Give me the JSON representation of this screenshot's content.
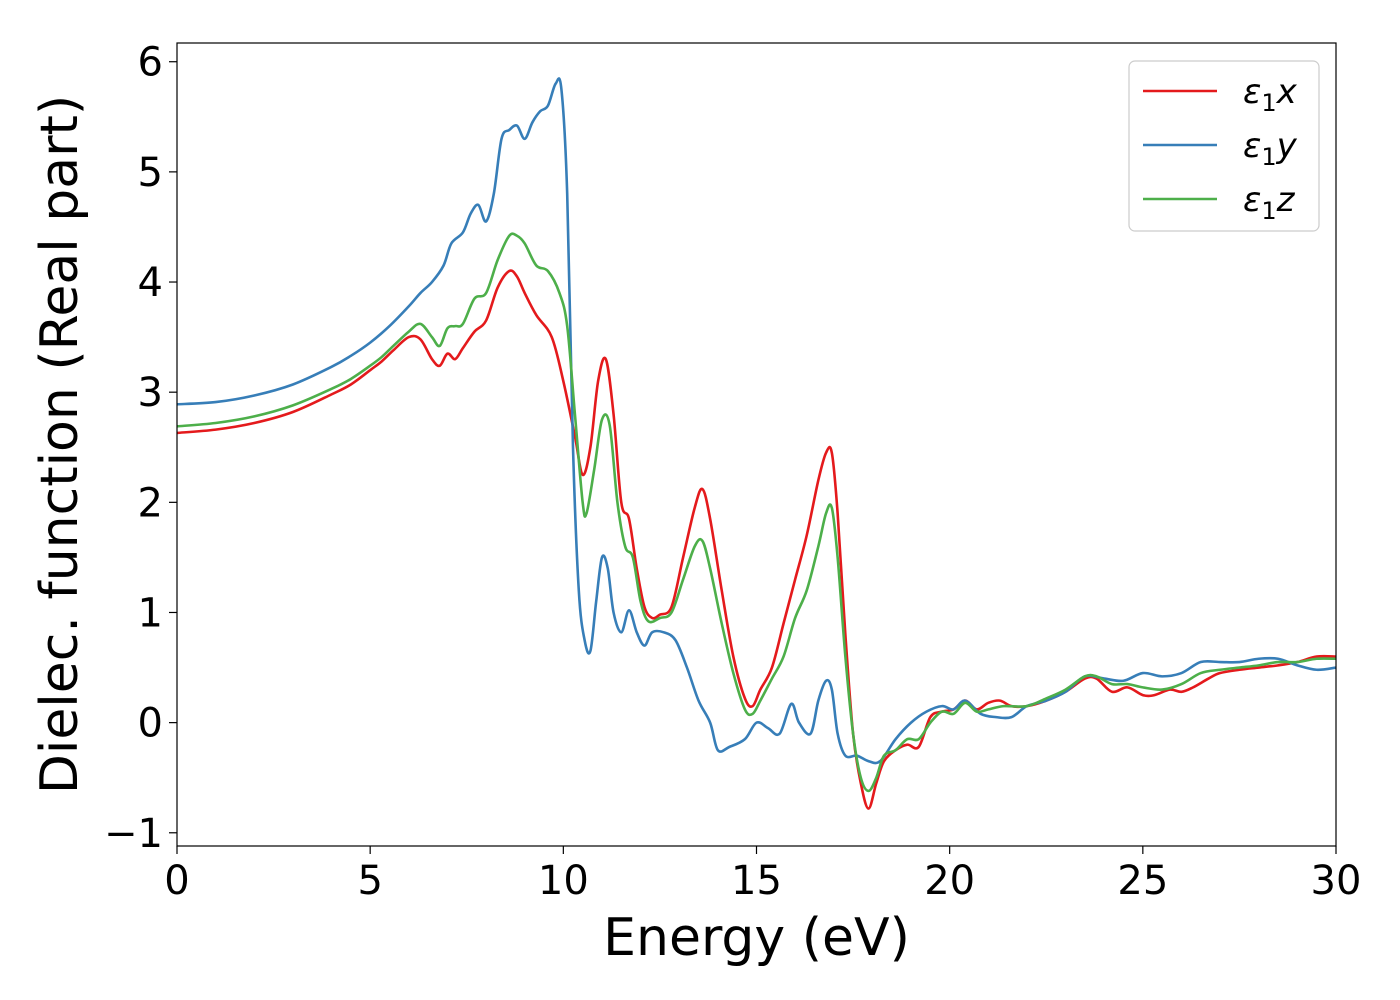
{
  "chart_data": {
    "type": "line",
    "xlabel": "Energy (eV)",
    "ylabel": "Dielec. function (Real part)",
    "xlim": [
      0,
      30
    ],
    "ylim": [
      -1.12,
      6.17
    ],
    "x_ticks": [
      0,
      5,
      10,
      15,
      20,
      25,
      30
    ],
    "x_tick_labels": [
      "0",
      "5",
      "10",
      "15",
      "20",
      "25",
      "30"
    ],
    "y_ticks": [
      -1,
      0,
      1,
      2,
      3,
      4,
      5,
      6
    ],
    "y_tick_labels": [
      "−1",
      "0",
      "1",
      "2",
      "3",
      "4",
      "5",
      "6"
    ],
    "grid": false,
    "legend_position": "top-right",
    "series": [
      {
        "name": "ε₁x",
        "legend_base": "ε",
        "legend_sub": "1",
        "legend_suffix": "x",
        "color": "#e41a1c",
        "x": [
          0,
          1,
          2,
          3,
          4,
          4.5,
          5,
          5.3,
          5.6,
          6.0,
          6.3,
          6.6,
          6.8,
          7.0,
          7.2,
          7.4,
          7.7,
          8.0,
          8.3,
          8.6,
          8.8,
          9.0,
          9.3,
          9.7,
          10.0,
          10.3,
          10.5,
          10.7,
          10.9,
          11.1,
          11.3,
          11.5,
          11.7,
          11.9,
          12.1,
          12.3,
          12.5,
          12.8,
          13.1,
          13.4,
          13.6,
          13.8,
          14.1,
          14.4,
          14.7,
          14.9,
          15.1,
          15.4,
          15.7,
          16.0,
          16.3,
          16.6,
          16.8,
          16.95,
          17.1,
          17.3,
          17.5,
          17.7,
          17.9,
          18.1,
          18.3,
          18.6,
          18.9,
          19.2,
          19.5,
          19.8,
          20.1,
          20.4,
          20.7,
          21.0,
          21.3,
          21.6,
          22.0,
          22.5,
          23.0,
          23.5,
          23.8,
          24.2,
          24.6,
          25.0,
          25.3,
          25.7,
          26.0,
          26.3,
          26.7,
          27.0,
          27.5,
          28.0,
          28.5,
          29.0,
          29.5,
          30.0
        ],
        "values": [
          2.63,
          2.66,
          2.72,
          2.82,
          2.98,
          3.07,
          3.2,
          3.28,
          3.38,
          3.5,
          3.48,
          3.3,
          3.24,
          3.35,
          3.3,
          3.4,
          3.55,
          3.65,
          3.95,
          4.1,
          4.05,
          3.9,
          3.7,
          3.5,
          3.1,
          2.6,
          2.25,
          2.5,
          3.1,
          3.3,
          2.8,
          2.0,
          1.85,
          1.4,
          1.05,
          0.95,
          0.98,
          1.05,
          1.5,
          1.95,
          2.12,
          1.85,
          1.2,
          0.6,
          0.22,
          0.15,
          0.3,
          0.5,
          0.9,
          1.3,
          1.7,
          2.2,
          2.45,
          2.45,
          1.9,
          0.8,
          -0.1,
          -0.55,
          -0.78,
          -0.55,
          -0.35,
          -0.25,
          -0.2,
          -0.22,
          0.05,
          0.1,
          0.12,
          0.2,
          0.12,
          0.18,
          0.2,
          0.15,
          0.15,
          0.2,
          0.28,
          0.4,
          0.4,
          0.28,
          0.32,
          0.25,
          0.25,
          0.3,
          0.28,
          0.32,
          0.4,
          0.45,
          0.48,
          0.5,
          0.52,
          0.55,
          0.6,
          0.6
        ]
      },
      {
        "name": "ε₁y",
        "legend_base": "ε",
        "legend_sub": "1",
        "legend_suffix": "y",
        "color": "#377eb8",
        "x": [
          0,
          1,
          2,
          3,
          4,
          4.5,
          5,
          5.5,
          6.0,
          6.3,
          6.6,
          6.9,
          7.1,
          7.4,
          7.6,
          7.8,
          8.0,
          8.2,
          8.4,
          8.6,
          8.8,
          9.0,
          9.2,
          9.4,
          9.6,
          9.8,
          9.95,
          10.1,
          10.25,
          10.4,
          10.55,
          10.7,
          10.85,
          11.0,
          11.15,
          11.3,
          11.5,
          11.7,
          11.9,
          12.1,
          12.3,
          12.6,
          12.9,
          13.2,
          13.5,
          13.8,
          14.0,
          14.3,
          14.7,
          15.0,
          15.3,
          15.6,
          15.9,
          16.1,
          16.4,
          16.6,
          16.8,
          16.95,
          17.1,
          17.3,
          17.6,
          17.9,
          18.2,
          18.6,
          19.0,
          19.4,
          19.8,
          20.1,
          20.4,
          20.8,
          21.2,
          21.6,
          22.0,
          22.5,
          23.0,
          23.5,
          24.0,
          24.5,
          25.0,
          25.5,
          26.0,
          26.5,
          27.0,
          27.5,
          28.0,
          28.5,
          29.0,
          29.5,
          30.0
        ],
        "values": [
          2.89,
          2.91,
          2.97,
          3.07,
          3.23,
          3.33,
          3.45,
          3.6,
          3.78,
          3.9,
          4.0,
          4.15,
          4.35,
          4.45,
          4.62,
          4.7,
          4.55,
          4.8,
          5.3,
          5.38,
          5.42,
          5.3,
          5.45,
          5.55,
          5.6,
          5.8,
          5.75,
          4.8,
          2.5,
          1.2,
          0.75,
          0.65,
          1.1,
          1.5,
          1.4,
          1.0,
          0.82,
          1.02,
          0.82,
          0.7,
          0.82,
          0.82,
          0.75,
          0.5,
          0.2,
          0.0,
          -0.25,
          -0.22,
          -0.15,
          0.0,
          -0.05,
          -0.1,
          0.17,
          0.0,
          -0.1,
          0.2,
          0.38,
          0.3,
          -0.1,
          -0.3,
          -0.3,
          -0.35,
          -0.35,
          -0.15,
          0.0,
          0.1,
          0.15,
          0.12,
          0.2,
          0.08,
          0.05,
          0.05,
          0.15,
          0.2,
          0.28,
          0.42,
          0.4,
          0.38,
          0.45,
          0.42,
          0.45,
          0.55,
          0.55,
          0.55,
          0.58,
          0.58,
          0.52,
          0.48,
          0.5
        ]
      },
      {
        "name": "ε₁z",
        "legend_base": "ε",
        "legend_sub": "1",
        "legend_suffix": "z",
        "color": "#4daf4a",
        "x": [
          0,
          1,
          2,
          3,
          4,
          4.5,
          5,
          5.3,
          5.6,
          6.0,
          6.3,
          6.6,
          6.8,
          7.0,
          7.2,
          7.4,
          7.7,
          8.0,
          8.3,
          8.6,
          8.8,
          9.0,
          9.3,
          9.6,
          9.9,
          10.1,
          10.3,
          10.5,
          10.6,
          10.8,
          11.0,
          11.2,
          11.4,
          11.6,
          11.8,
          12.0,
          12.2,
          12.5,
          12.8,
          13.1,
          13.4,
          13.6,
          13.8,
          14.1,
          14.4,
          14.7,
          14.9,
          15.1,
          15.4,
          15.7,
          16.0,
          16.3,
          16.6,
          16.8,
          16.95,
          17.1,
          17.3,
          17.5,
          17.7,
          17.9,
          18.1,
          18.3,
          18.6,
          18.9,
          19.2,
          19.5,
          19.8,
          20.1,
          20.4,
          20.7,
          21.0,
          21.4,
          22.0,
          22.5,
          23.0,
          23.5,
          23.8,
          24.2,
          24.6,
          25.0,
          25.5,
          26.0,
          26.5,
          27.0,
          27.5,
          28.0,
          28.5,
          29.0,
          29.5,
          30.0
        ],
        "values": [
          2.69,
          2.72,
          2.78,
          2.88,
          3.03,
          3.12,
          3.24,
          3.32,
          3.42,
          3.55,
          3.62,
          3.5,
          3.42,
          3.58,
          3.6,
          3.62,
          3.85,
          3.9,
          4.2,
          4.42,
          4.42,
          4.35,
          4.15,
          4.1,
          3.9,
          3.6,
          2.8,
          2.0,
          1.9,
          2.3,
          2.75,
          2.7,
          2.0,
          1.6,
          1.5,
          1.1,
          0.92,
          0.95,
          1.0,
          1.3,
          1.6,
          1.65,
          1.4,
          0.9,
          0.45,
          0.12,
          0.08,
          0.2,
          0.4,
          0.6,
          0.95,
          1.2,
          1.6,
          1.9,
          1.95,
          1.5,
          0.6,
          -0.1,
          -0.5,
          -0.62,
          -0.5,
          -0.3,
          -0.25,
          -0.15,
          -0.15,
          0.0,
          0.1,
          0.08,
          0.18,
          0.1,
          0.12,
          0.15,
          0.15,
          0.22,
          0.3,
          0.42,
          0.42,
          0.35,
          0.35,
          0.32,
          0.3,
          0.35,
          0.45,
          0.48,
          0.5,
          0.52,
          0.55,
          0.55,
          0.58,
          0.58
        ]
      }
    ]
  }
}
